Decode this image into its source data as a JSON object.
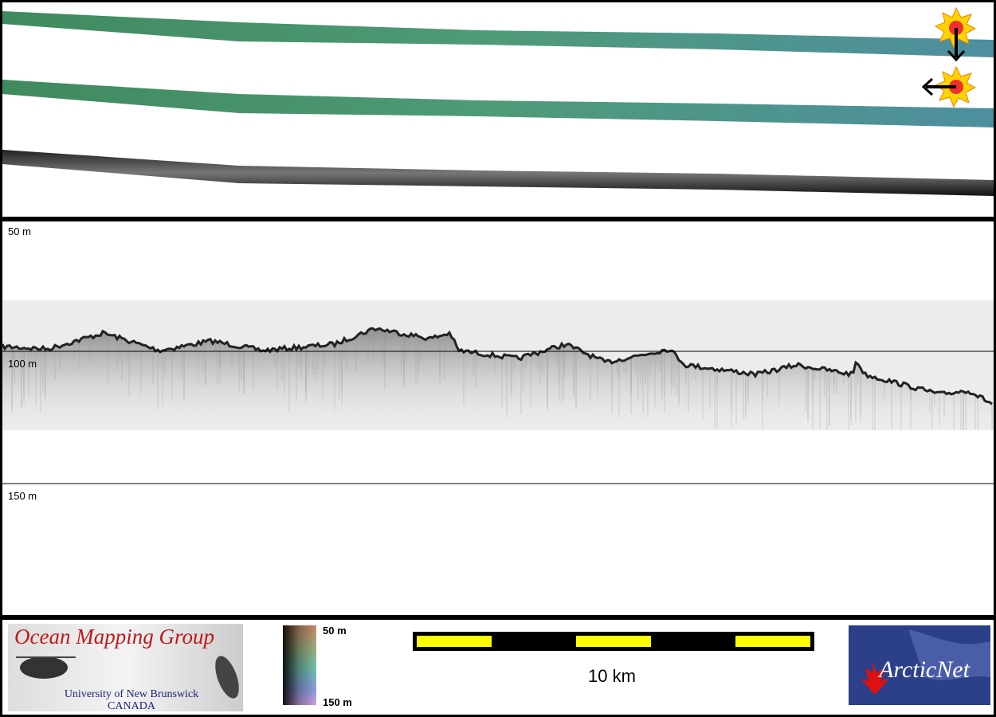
{
  "profile": {
    "depth_labels": [
      "50 m",
      "100 m",
      "150 m"
    ]
  },
  "footer": {
    "logo_title": "Ocean Mapping Group",
    "logo_university": "University of New Brunswick",
    "logo_country": "CANADA",
    "colorbar_top": "50 m",
    "colorbar_bottom": "150 m",
    "scale_label": "10 km",
    "partner_logo": "ArcticNet"
  }
}
